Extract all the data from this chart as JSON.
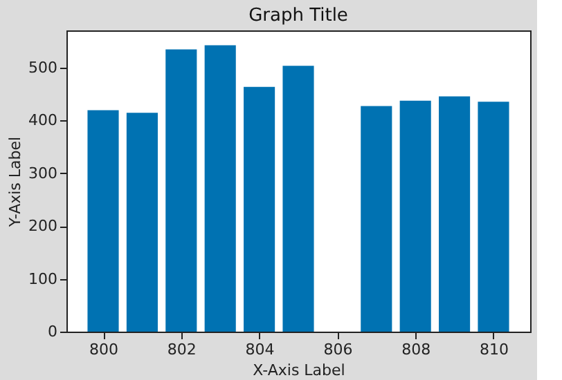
{
  "chart_data": {
    "type": "bar",
    "title": "Graph Title",
    "xlabel": "X-Axis Label",
    "ylabel": "Y-Axis Label",
    "x": [
      800,
      801,
      802,
      803,
      804,
      805,
      807,
      808,
      809,
      810
    ],
    "values": [
      419,
      414,
      534,
      542,
      463,
      503,
      427,
      437,
      445,
      435
    ],
    "color": "#0072b2",
    "xlim": [
      799.06,
      810.94
    ],
    "xticks": [
      800,
      802,
      804,
      806,
      808,
      810
    ],
    "ylim": [
      0,
      570
    ],
    "yticks": [
      0,
      100,
      200,
      300,
      400,
      500
    ],
    "grid": false
  }
}
